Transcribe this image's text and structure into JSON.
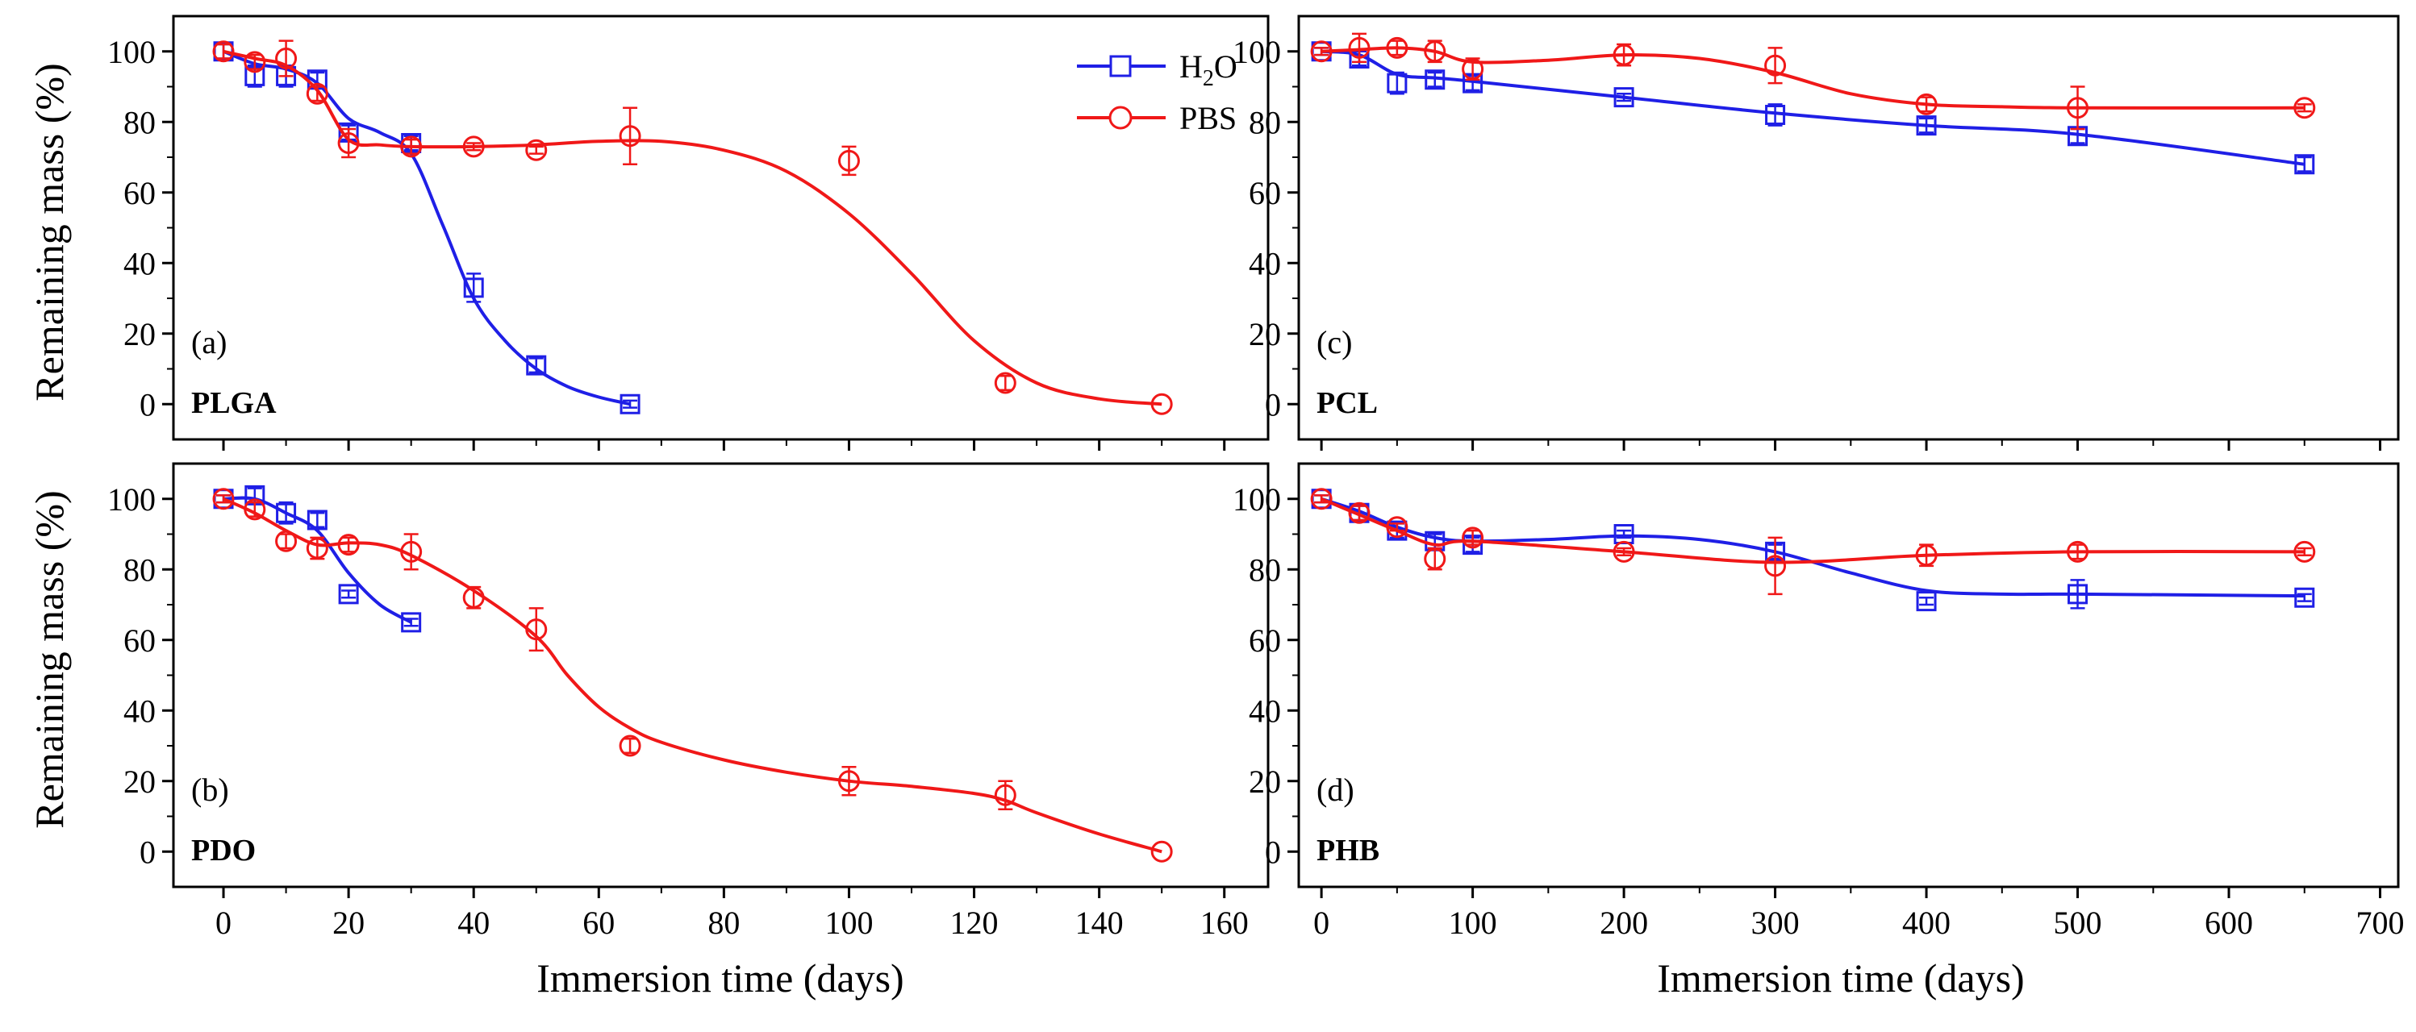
{
  "figure": {
    "ylabel": "Remaining mass (%)",
    "xlabel": "Immersion time (days)",
    "colors": {
      "H2O": "#1f1fe6",
      "PBS": "#f01818",
      "axis": "#000000"
    }
  },
  "legend": [
    {
      "key": "H2O",
      "label": "H",
      "sub": "2",
      "tail": "O",
      "marker": "square"
    },
    {
      "key": "PBS",
      "label": "PBS",
      "marker": "circle"
    }
  ],
  "chart_data": [
    {
      "id": "a",
      "tag": "(a)",
      "name": "PLGA",
      "type": "line",
      "xlim": [
        -8,
        167
      ],
      "ylim": [
        -10,
        110
      ],
      "xticks": [
        0,
        20,
        40,
        60,
        80,
        100,
        120,
        140,
        160
      ],
      "yticks": [
        0,
        20,
        40,
        60,
        80,
        100
      ],
      "series": [
        {
          "name": "H2O",
          "marker": "square",
          "x": [
            0,
            5,
            10,
            15,
            20,
            30,
            40,
            50,
            65
          ],
          "y": [
            100,
            93,
            93,
            92,
            77,
            74,
            33,
            11,
            0
          ],
          "err": [
            2,
            3,
            3,
            2,
            2,
            2,
            4,
            2,
            1
          ],
          "curve_x": [
            0,
            5,
            10,
            15,
            20,
            25,
            30,
            35,
            40,
            45,
            50,
            55,
            60,
            65
          ],
          "curve_y": [
            100,
            96.5,
            95,
            91,
            81,
            77,
            71,
            51,
            30,
            18,
            10,
            5,
            2,
            0
          ]
        },
        {
          "name": "PBS",
          "marker": "circle",
          "x": [
            0,
            5,
            10,
            15,
            20,
            30,
            40,
            50,
            65,
            100,
            125,
            150
          ],
          "y": [
            100,
            97,
            98,
            88,
            74,
            73,
            73,
            72,
            76,
            69,
            6,
            0
          ],
          "err": [
            2,
            2,
            5,
            2,
            4,
            2,
            1,
            1,
            8,
            4,
            2,
            0
          ],
          "curve_x": [
            0,
            5,
            10,
            15,
            20,
            25,
            30,
            40,
            50,
            60,
            70,
            80,
            90,
            100,
            110,
            120,
            130,
            140,
            150
          ],
          "curve_y": [
            100,
            98,
            96,
            89,
            75,
            73.5,
            73,
            73,
            73.5,
            74.5,
            74.5,
            72,
            66,
            54,
            37,
            18,
            6,
            1.5,
            0
          ]
        }
      ]
    },
    {
      "id": "c",
      "tag": "(c)",
      "name": "PCL",
      "type": "line",
      "xlim": [
        -15,
        712
      ],
      "ylim": [
        -10,
        110
      ],
      "xticks": [
        0,
        100,
        200,
        300,
        400,
        500,
        600,
        700
      ],
      "yticks": [
        0,
        20,
        40,
        60,
        80,
        100
      ],
      "series": [
        {
          "name": "H2O",
          "marker": "square",
          "x": [
            0,
            25,
            50,
            75,
            100,
            200,
            300,
            400,
            500,
            650
          ],
          "y": [
            100,
            98,
            91,
            92,
            91,
            87,
            82,
            79,
            76,
            68
          ],
          "err": [
            1,
            2,
            3,
            2,
            2,
            1,
            3,
            2,
            2,
            2
          ],
          "curve_x": [
            0,
            25,
            50,
            75,
            100,
            200,
            300,
            400,
            500,
            650
          ],
          "curve_y": [
            100,
            99,
            93.5,
            92.5,
            91.5,
            87,
            82.5,
            79,
            76.5,
            68
          ]
        },
        {
          "name": "PBS",
          "marker": "circle",
          "x": [
            0,
            25,
            50,
            75,
            100,
            200,
            300,
            400,
            500,
            650
          ],
          "y": [
            100,
            101,
            101,
            100,
            95,
            99,
            96,
            85,
            84,
            84
          ],
          "err": [
            1,
            4,
            2,
            3,
            3,
            3,
            5,
            2,
            6,
            1
          ],
          "curve_x": [
            0,
            25,
            50,
            75,
            100,
            150,
            200,
            250,
            300,
            350,
            400,
            450,
            500,
            650
          ],
          "curve_y": [
            100,
            100.5,
            101,
            100,
            97,
            97.5,
            99,
            98,
            94,
            88,
            85,
            84.3,
            84,
            84
          ]
        }
      ]
    },
    {
      "id": "b",
      "tag": "(b)",
      "name": "PDO",
      "type": "line",
      "xlim": [
        -8,
        167
      ],
      "ylim": [
        -10,
        110
      ],
      "xticks": [
        0,
        20,
        40,
        60,
        80,
        100,
        120,
        140,
        160
      ],
      "yticks": [
        0,
        20,
        40,
        60,
        80,
        100
      ],
      "series": [
        {
          "name": "H2O",
          "marker": "square",
          "x": [
            0,
            5,
            10,
            15,
            20,
            30
          ],
          "y": [
            100,
            101,
            96,
            94,
            73,
            65
          ],
          "err": [
            1,
            2,
            3,
            2,
            1,
            1
          ],
          "curve_x": [
            0,
            5,
            10,
            15,
            20,
            25,
            30
          ],
          "curve_y": [
            100,
            100,
            96,
            91,
            79,
            70,
            65
          ]
        },
        {
          "name": "PBS",
          "marker": "circle",
          "x": [
            0,
            5,
            10,
            15,
            20,
            30,
            40,
            50,
            65,
            100,
            125,
            150
          ],
          "y": [
            100,
            97,
            88,
            86,
            87,
            85,
            72,
            63,
            30,
            20,
            16,
            0
          ],
          "err": [
            1,
            2,
            2,
            3,
            2,
            5,
            3,
            6,
            2,
            4,
            4,
            0
          ],
          "curve_x": [
            0,
            5,
            10,
            15,
            20,
            25,
            30,
            40,
            50,
            55,
            60,
            65,
            70,
            80,
            90,
            100,
            110,
            120,
            125,
            130,
            140,
            150
          ],
          "curve_y": [
            100,
            96,
            91,
            87,
            87.5,
            87,
            84,
            74,
            61,
            50,
            41,
            35,
            31,
            26,
            22.5,
            20,
            18.5,
            16.5,
            14.5,
            11,
            5,
            0
          ]
        }
      ]
    },
    {
      "id": "d",
      "tag": "(d)",
      "name": "PHB",
      "type": "line",
      "xlim": [
        -15,
        712
      ],
      "ylim": [
        -10,
        110
      ],
      "xticks": [
        0,
        100,
        200,
        300,
        400,
        500,
        600,
        700
      ],
      "yticks": [
        0,
        20,
        40,
        60,
        80,
        100
      ],
      "series": [
        {
          "name": "H2O",
          "marker": "square",
          "x": [
            0,
            25,
            50,
            75,
            100,
            200,
            300,
            400,
            500,
            650
          ],
          "y": [
            100,
            96,
            91,
            88,
            87,
            90,
            85,
            71,
            73,
            72
          ],
          "err": [
            1,
            2,
            2,
            2,
            2,
            1,
            2,
            1,
            4,
            1
          ],
          "curve_x": [
            0,
            25,
            50,
            75,
            100,
            150,
            200,
            250,
            300,
            350,
            400,
            450,
            500,
            650
          ],
          "curve_y": [
            100,
            96.5,
            92,
            89,
            88,
            88.5,
            89.5,
            88.5,
            85,
            79,
            74,
            73,
            73,
            72.5
          ]
        },
        {
          "name": "PBS",
          "marker": "circle",
          "x": [
            0,
            25,
            50,
            75,
            100,
            200,
            300,
            400,
            500,
            650
          ],
          "y": [
            100,
            96,
            92,
            83,
            89,
            85,
            81,
            84,
            85,
            85
          ],
          "err": [
            1,
            2,
            1,
            3,
            2,
            1,
            8,
            3,
            2,
            1
          ],
          "curve_x": [
            0,
            25,
            50,
            75,
            100,
            200,
            300,
            400,
            500,
            650
          ],
          "curve_y": [
            100,
            95.5,
            91,
            87,
            88,
            85,
            82,
            84,
            85,
            85
          ]
        }
      ]
    }
  ]
}
